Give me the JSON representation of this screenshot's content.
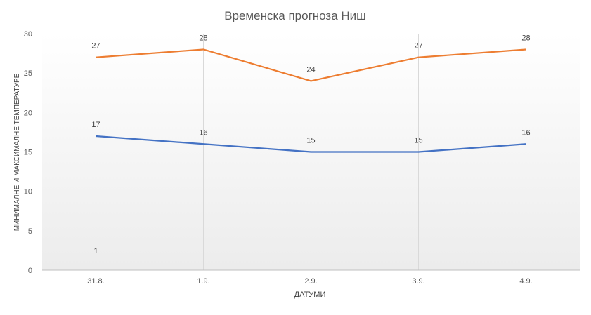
{
  "chart_data": {
    "type": "line",
    "title": "Временска прогноза Ниш",
    "xlabel": "ДАТУМИ",
    "ylabel": "МИНИМАЛНЕ И МАКСИМАЛНЕ ТЕМПЕРАТУРЕ",
    "categories": [
      "31.8.",
      "1.9.",
      "2.9.",
      "3.9.",
      "4.9."
    ],
    "ylim": [
      0,
      30
    ],
    "yticks": [
      0,
      5,
      10,
      15,
      20,
      25,
      30
    ],
    "grid": "vertical",
    "legend": "none",
    "series": [
      {
        "values": [
          27,
          28,
          24,
          27,
          28
        ],
        "color": "#ed7d31"
      },
      {
        "values": [
          17,
          16,
          15,
          15,
          16
        ],
        "color": "#4472c4"
      }
    ],
    "annotations": [
      {
        "text": "1",
        "x": "31.8.",
        "y": 2.5
      }
    ]
  }
}
